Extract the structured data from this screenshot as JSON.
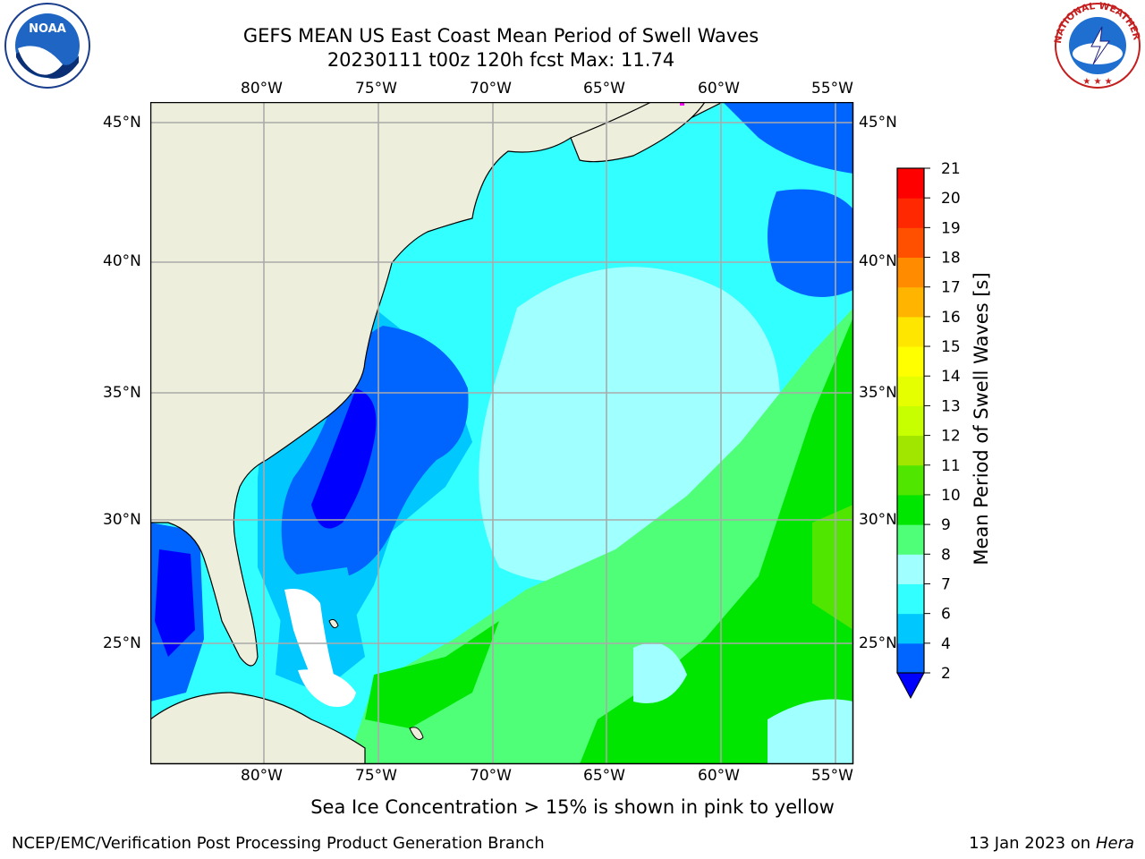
{
  "title_line1": "GEFS MEAN US East Coast Mean Period of Swell Waves",
  "title_line2": "20230111 t00z 120h fcst   Max: 11.74",
  "lon_labels": [
    "80°W",
    "75°W",
    "70°W",
    "65°W",
    "60°W",
    "55°W"
  ],
  "lat_labels": [
    "45°N",
    "40°N",
    "35°N",
    "30°N",
    "25°N"
  ],
  "colorbar": {
    "label": "Mean Period of Swell Waves [s]",
    "ticks": [
      "2",
      "4",
      "6",
      "7",
      "8",
      "9",
      "10",
      "11",
      "12",
      "13",
      "14",
      "15",
      "16",
      "17",
      "18",
      "19",
      "20",
      "21"
    ],
    "colors": [
      "#0064ff",
      "#00c8ff",
      "#32ffff",
      "#a0ffff",
      "#50ff78",
      "#00e600",
      "#50e600",
      "#a0e600",
      "#c8ff00",
      "#e6ff00",
      "#ffff00",
      "#ffe600",
      "#ffb400",
      "#ff8c00",
      "#ff5000",
      "#ff2800",
      "#ff0000"
    ],
    "under_color": "#0000ff"
  },
  "note": "Sea Ice Concentration > 15% is shown in pink to yellow",
  "footer_left": "NCEP/EMC/Verification Post Processing Product Generation Branch",
  "footer_date": "13 Jan 2023 on ",
  "footer_host": "Hera",
  "logos": {
    "noaa": "NOAA",
    "nws": "NATIONAL WEATHER SERVICE"
  },
  "colors": {
    "land": "#eeeedc",
    "grid": "#aaaaaa"
  }
}
